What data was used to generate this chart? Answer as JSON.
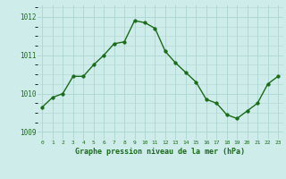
{
  "x": [
    0,
    1,
    2,
    3,
    4,
    5,
    6,
    7,
    8,
    9,
    10,
    11,
    12,
    13,
    14,
    15,
    16,
    17,
    18,
    19,
    20,
    21,
    22,
    23
  ],
  "y": [
    1009.65,
    1009.9,
    1010.0,
    1010.45,
    1010.45,
    1010.75,
    1011.0,
    1011.3,
    1011.35,
    1011.9,
    1011.85,
    1011.7,
    1011.1,
    1010.8,
    1010.55,
    1010.3,
    1009.85,
    1009.75,
    1009.45,
    1009.35,
    1009.55,
    1009.75,
    1010.25,
    1010.45
  ],
  "line_color": "#1a6b1a",
  "marker_color": "#1a6b1a",
  "bg_color": "#ceecea",
  "grid_color": "#b0d8d4",
  "xlabel": "Graphe pression niveau de la mer (hPa)",
  "xlabel_color": "#1a6b1a",
  "tick_color": "#1a6b1a",
  "ylim": [
    1008.8,
    1012.3
  ],
  "yticks": [
    1009,
    1010,
    1011,
    1012
  ],
  "xlim": [
    -0.5,
    23.5
  ],
  "xticks": [
    0,
    1,
    2,
    3,
    4,
    5,
    6,
    7,
    8,
    9,
    10,
    11,
    12,
    13,
    14,
    15,
    16,
    17,
    18,
    19,
    20,
    21,
    22,
    23
  ],
  "line_width": 1.0,
  "marker_size": 2.5
}
